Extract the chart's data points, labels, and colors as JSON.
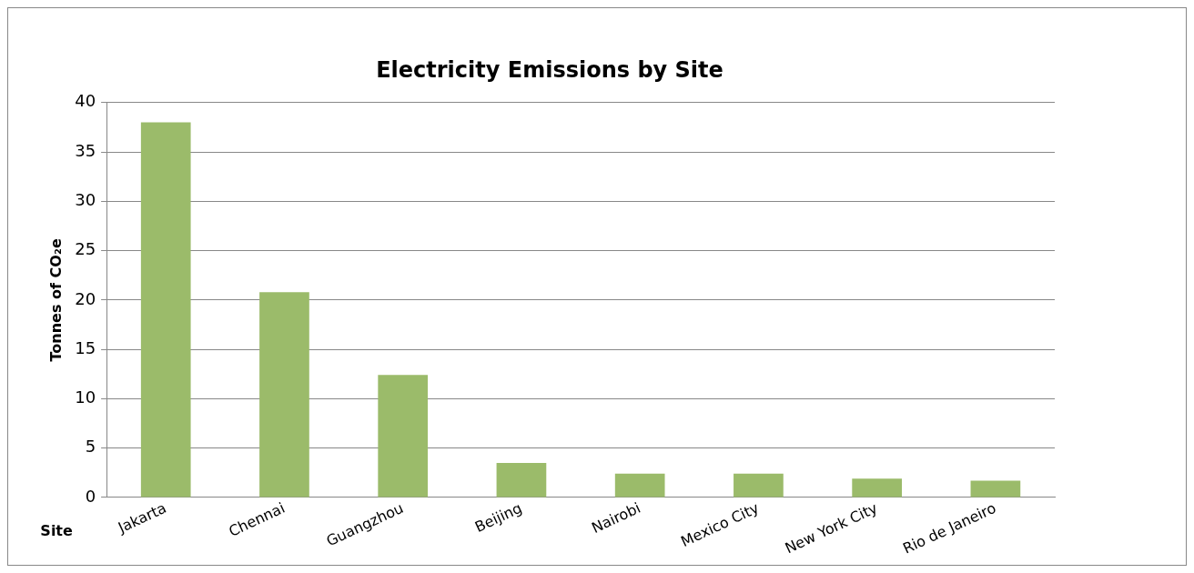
{
  "chart_data": {
    "type": "bar",
    "title": "Electricity Emissions by Site",
    "xlabel": "Site",
    "ylabel": "Tonnes of CO₂e",
    "categories": [
      "Jakarta",
      "Chennai",
      "Guangzhou",
      "Beijing",
      "Nairobi",
      "Mexico City",
      "New York City",
      "Rio de Janeiro"
    ],
    "values": [
      38.0,
      20.8,
      12.4,
      3.5,
      2.4,
      2.4,
      1.9,
      1.7
    ],
    "color": "#9bbb6a",
    "ylim": [
      0,
      40
    ],
    "yticks": [
      0,
      5,
      10,
      15,
      20,
      25,
      30,
      35,
      40
    ],
    "grid": "y",
    "legend": false
  }
}
